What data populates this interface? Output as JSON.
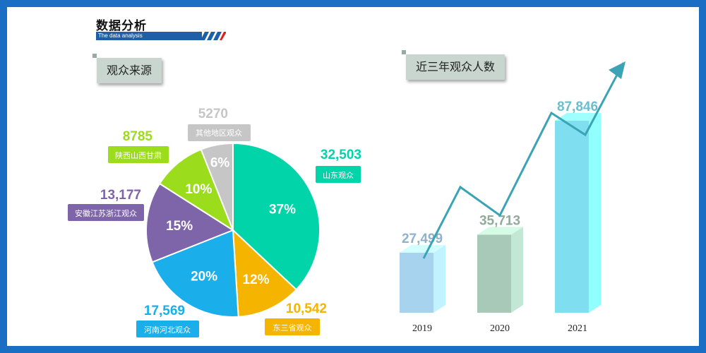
{
  "header": {
    "title": "数据分析",
    "subtitle": "The data analysis"
  },
  "pie_section": {
    "tag": "观众来源"
  },
  "bar_section": {
    "tag": "近三年观众人数"
  },
  "chart_data": [
    {
      "type": "pie",
      "title": "观众来源",
      "slices": [
        {
          "label": "山东观众",
          "value": "32,503",
          "percent": 37,
          "percent_label": "37%",
          "color": "#00d4a8"
        },
        {
          "label": "东三省观众",
          "value": "10,542",
          "percent": 12,
          "percent_label": "12%",
          "color": "#f5b400"
        },
        {
          "label": "河南河北观众",
          "value": "17,569",
          "percent": 20,
          "percent_label": "20%",
          "color": "#1aaeea"
        },
        {
          "label": "安徽江苏浙江观众",
          "value": "13,177",
          "percent": 15,
          "percent_label": "15%",
          "color": "#7e64a8"
        },
        {
          "label": "陕西山西甘肃",
          "value": "8785",
          "percent": 10,
          "percent_label": "10%",
          "color": "#9bdc1c"
        },
        {
          "label": "其他地区观众",
          "value": "5270",
          "percent": 6,
          "percent_label": "6%",
          "color": "#c6c6c6"
        }
      ]
    },
    {
      "type": "bar",
      "title": "近三年观众人数",
      "categories": [
        "2019",
        "2020",
        "2021"
      ],
      "values": [
        27499,
        35713,
        87846
      ],
      "value_labels": [
        "27,499",
        "35,713",
        "87,846"
      ],
      "colors": [
        "#a7d3ee",
        "#a9c9b8",
        "#7fdff0"
      ],
      "trend_arrow": true
    }
  ]
}
